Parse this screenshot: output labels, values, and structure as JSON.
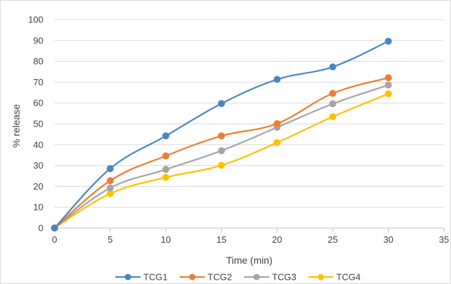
{
  "chart_data": {
    "type": "line",
    "title": "",
    "xlabel": "Time (min)",
    "ylabel": "% release",
    "xlim": [
      0,
      35
    ],
    "ylim": [
      0,
      100
    ],
    "x_ticks": [
      0,
      5,
      10,
      15,
      20,
      25,
      30,
      35
    ],
    "y_ticks": [
      0,
      10,
      20,
      30,
      40,
      50,
      60,
      70,
      80,
      90,
      100
    ],
    "grid": "horizontal",
    "legend_position": "bottom",
    "x": [
      0,
      5,
      10,
      15,
      20,
      25,
      30
    ],
    "series": [
      {
        "name": "TCG1",
        "color": "#4a86c5",
        "values": [
          0,
          28.5,
          44.2,
          59.7,
          71.3,
          77.3,
          89.6
        ]
      },
      {
        "name": "TCG2",
        "color": "#ed7d31",
        "values": [
          0,
          22.7,
          34.6,
          44.2,
          50.1,
          64.6,
          72.1
        ]
      },
      {
        "name": "TCG3",
        "color": "#a5a5a5",
        "values": [
          0,
          19.2,
          28.1,
          37.1,
          48.3,
          59.6,
          68.6
        ]
      },
      {
        "name": "TCG4",
        "color": "#ffc000",
        "values": [
          0,
          16.5,
          24.3,
          30.1,
          41.0,
          53.4,
          64.4
        ]
      }
    ]
  }
}
